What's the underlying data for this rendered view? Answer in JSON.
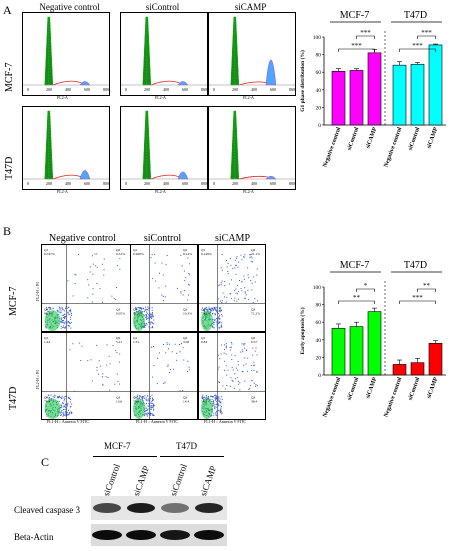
{
  "panelA": {
    "letter": "A",
    "columns": [
      "Negative control",
      "siControl",
      "siCAMP"
    ],
    "rows": [
      "MCF-7",
      "T47D"
    ],
    "x_axis_label": "FL2-A",
    "x_ticks": [
      "0",
      "200",
      "400",
      "600",
      "800"
    ]
  },
  "panelB": {
    "letter": "B",
    "columns": [
      "Negative control",
      "siControl",
      "siCAMP"
    ],
    "rows": [
      "MCF-7",
      "T47D"
    ],
    "x_axis_label": "FL1-H :: Annexin V FITC",
    "y_axis_label": "FL2-H :: PI",
    "quadrants": [
      [
        [
          "0.537%",
          "0.31%",
          "98.1%",
          "0.05%"
        ],
        [
          "0.260%",
          "8.14%",
          "81.3%",
          "10.3%"
        ],
        [
          "0.149%",
          "21.1%",
          "7.45%",
          "71.2%"
        ]
      ],
      [
        [
          "1.44",
          "5.21",
          "79.8",
          "13.6"
        ],
        [
          "1.51",
          "3.58",
          "70.6",
          "14.4"
        ],
        [
          "0.83",
          "6.57",
          "54.2",
          "38.4"
        ]
      ]
    ]
  },
  "panelC": {
    "letter": "C",
    "groups": [
      "MCF-7",
      "T47D"
    ],
    "lanes": [
      "siControl",
      "siCAMP",
      "siControl",
      "siCAMP"
    ],
    "bands": [
      "Cleaved caspase 3",
      "Beta-Actin"
    ]
  },
  "colors": {
    "magenta": "#ff00ff",
    "cyan": "#00ffff",
    "green": "#00ff00",
    "red": "#ff0000",
    "hist_green": "#1a8a1a",
    "flow_blue": "#3355cc"
  },
  "chart_data": [
    {
      "type": "bar",
      "group_labels": [
        "MCF-7",
        "T47D"
      ],
      "categories": [
        "Negative control",
        "siControl",
        "siCAMP",
        "Negative control",
        "siControl",
        "siCAMP"
      ],
      "values": [
        61,
        62,
        82,
        68,
        69,
        91
      ],
      "errors": [
        3,
        2,
        4,
        4,
        2,
        1
      ],
      "bar_colors": [
        "#ff00ff",
        "#ff00ff",
        "#ff00ff",
        "#00ffff",
        "#00ffff",
        "#00ffff"
      ],
      "ylabel": "G1 phase distribution (%)",
      "ylim": [
        0,
        100
      ],
      "yticks": [
        "0",
        "20",
        "40",
        "60",
        "80",
        "100"
      ],
      "significance": [
        "***",
        "***",
        "***",
        "***"
      ]
    },
    {
      "type": "bar",
      "group_labels": [
        "MCF-7",
        "T47D"
      ],
      "categories": [
        "Negative control",
        "siControl",
        "siCAMP",
        "Negative control",
        "siControl",
        "siCAMP"
      ],
      "values": [
        53,
        55,
        72,
        12,
        14,
        36
      ],
      "errors": [
        5,
        5,
        4,
        5,
        5,
        3
      ],
      "bar_colors": [
        "#00ff00",
        "#00ff00",
        "#00ff00",
        "#ff0000",
        "#ff0000",
        "#ff0000"
      ],
      "ylabel": "Early apoptosis (%)",
      "ylim": [
        0,
        100
      ],
      "yticks": [
        "0",
        "20",
        "40",
        "60",
        "80",
        "100"
      ],
      "significance": [
        "**",
        "*",
        "***",
        "**"
      ]
    }
  ]
}
